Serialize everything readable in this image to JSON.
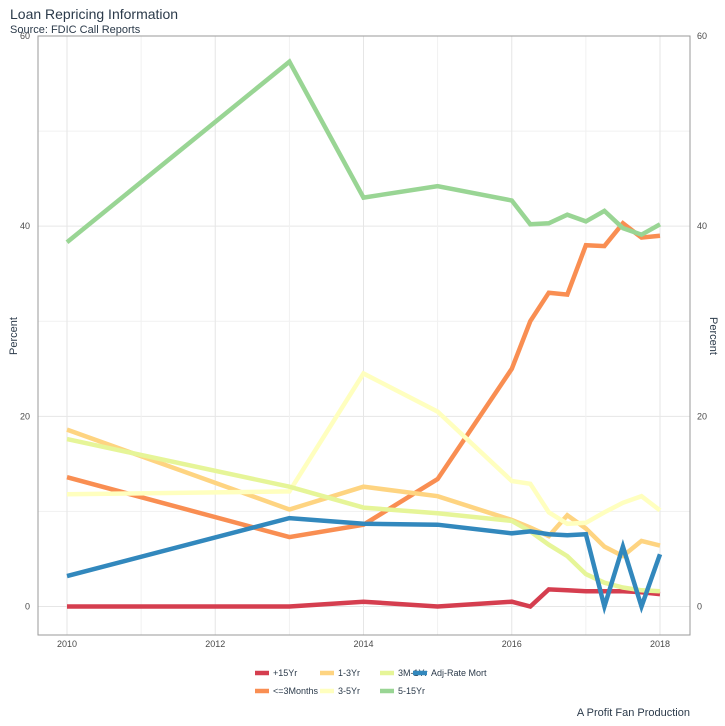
{
  "chart_data": {
    "type": "line",
    "title": "Loan Repricing Information",
    "subtitle": "Source: FDIC Call Reports",
    "caption": "A Profit Fan Production",
    "ylabel": "Percent",
    "ylabel_right": "Percent",
    "xlabel": "",
    "xlim": [
      2010,
      2018
    ],
    "ylim": [
      -3,
      60
    ],
    "x_ticks": [
      2010,
      2012,
      2014,
      2016,
      2018
    ],
    "y_ticks": [
      0,
      20,
      40,
      60
    ],
    "grid": true,
    "legend_position": "bottom",
    "series": [
      {
        "name": "+15Yr",
        "color": "#d53e4f",
        "points": [
          [
            2010,
            0
          ],
          [
            2013,
            0
          ],
          [
            2014,
            0.5
          ],
          [
            2015,
            0
          ],
          [
            2016,
            0.5
          ],
          [
            2016.25,
            0
          ],
          [
            2016.5,
            1.8
          ],
          [
            2016.75,
            1.7
          ],
          [
            2017,
            1.6
          ],
          [
            2017.25,
            1.6
          ],
          [
            2017.5,
            1.6
          ],
          [
            2017.75,
            1.5
          ],
          [
            2018,
            1.3
          ]
        ]
      },
      {
        "name": "<=3Months",
        "color": "#f98e52",
        "points": [
          [
            2010,
            13.6
          ],
          [
            2013,
            7.3
          ],
          [
            2014,
            8.6
          ],
          [
            2015,
            13.4
          ],
          [
            2016,
            25
          ],
          [
            2016.25,
            30
          ],
          [
            2016.5,
            33
          ],
          [
            2016.75,
            32.8
          ],
          [
            2017,
            38
          ],
          [
            2017.25,
            37.9
          ],
          [
            2017.5,
            40.3
          ],
          [
            2017.75,
            38.8
          ],
          [
            2018,
            39
          ]
        ]
      },
      {
        "name": "1-3Yr",
        "color": "#fed481",
        "points": [
          [
            2010,
            18.6
          ],
          [
            2013,
            10.2
          ],
          [
            2014,
            12.6
          ],
          [
            2015,
            11.6
          ],
          [
            2016,
            9.1
          ],
          [
            2016.25,
            8.3
          ],
          [
            2016.5,
            7.4
          ],
          [
            2016.75,
            9.6
          ],
          [
            2017,
            8.2
          ],
          [
            2017.25,
            6.3
          ],
          [
            2017.5,
            5.3
          ],
          [
            2017.75,
            6.9
          ],
          [
            2018,
            6.4
          ]
        ]
      },
      {
        "name": "3-5Yr",
        "color": "#ffffbf",
        "points": [
          [
            2010,
            11.8
          ],
          [
            2013,
            12.1
          ],
          [
            2014,
            24.5
          ],
          [
            2015,
            20.5
          ],
          [
            2016,
            13.2
          ],
          [
            2016.25,
            12.9
          ],
          [
            2016.5,
            9.9
          ],
          [
            2016.75,
            8.7
          ],
          [
            2017,
            8.8
          ],
          [
            2017.25,
            9.9
          ],
          [
            2017.5,
            10.9
          ],
          [
            2017.75,
            11.6
          ],
          [
            2018,
            10.1
          ]
        ]
      },
      {
        "name": "3M-1Yr",
        "color": "#e6f598",
        "points": [
          [
            2010,
            17.6
          ],
          [
            2013,
            12.6
          ],
          [
            2014,
            10.4
          ],
          [
            2015,
            9.8
          ],
          [
            2016,
            9
          ],
          [
            2016.25,
            7.9
          ],
          [
            2016.5,
            6.5
          ],
          [
            2016.75,
            5.3
          ],
          [
            2017,
            3.4
          ],
          [
            2017.25,
            2.5
          ],
          [
            2017.5,
            2
          ],
          [
            2017.75,
            1.7
          ],
          [
            2018,
            1.6
          ]
        ]
      },
      {
        "name": "5-15Yr",
        "color": "#99d594",
        "points": [
          [
            2010,
            38.3
          ],
          [
            2013,
            57.3
          ],
          [
            2014,
            43
          ],
          [
            2015,
            44.2
          ],
          [
            2016,
            42.7
          ],
          [
            2016.25,
            40.2
          ],
          [
            2016.5,
            40.3
          ],
          [
            2016.75,
            41.2
          ],
          [
            2017,
            40.5
          ],
          [
            2017.25,
            41.6
          ],
          [
            2017.5,
            39.8
          ],
          [
            2017.75,
            39.1
          ],
          [
            2018,
            40.2
          ]
        ]
      },
      {
        "name": "Adj-Rate Mort",
        "color": "#3288bd",
        "points": [
          [
            2010,
            3.2
          ],
          [
            2013,
            9.3
          ],
          [
            2014,
            8.7
          ],
          [
            2015,
            8.6
          ],
          [
            2016,
            7.7
          ],
          [
            2016.25,
            7.9
          ],
          [
            2016.5,
            7.6
          ],
          [
            2016.75,
            7.5
          ],
          [
            2017,
            7.6
          ],
          [
            2017.25,
            0
          ],
          [
            2017.5,
            6.3
          ],
          [
            2017.75,
            0
          ],
          [
            2018,
            5.5
          ]
        ]
      }
    ],
    "legend_rows": [
      [
        "+15Yr",
        "1-3Yr",
        "3M-1Yr",
        "Adj-Rate Mort"
      ],
      [
        "<=3Months",
        "3-5Yr",
        "5-15Yr"
      ]
    ]
  }
}
